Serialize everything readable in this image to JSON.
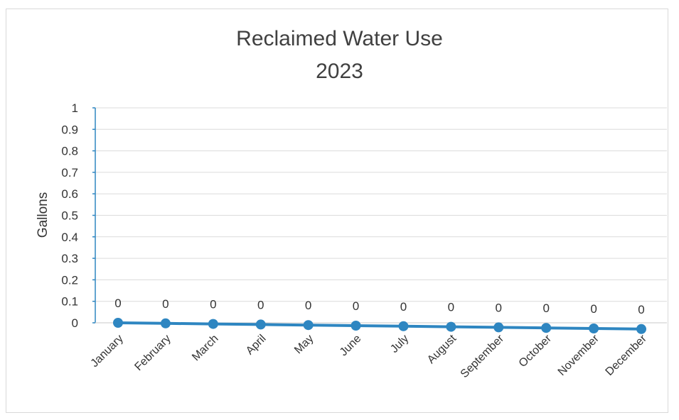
{
  "chart_data": {
    "type": "line",
    "title": "Reclaimed Water Use",
    "subtitle": "2023",
    "xlabel": "",
    "ylabel": "Gallons",
    "ylim": [
      0,
      1
    ],
    "yticks": [
      "0",
      "0.1",
      "0.2",
      "0.3",
      "0.4",
      "0.5",
      "0.6",
      "0.7",
      "0.8",
      "0.9",
      "1"
    ],
    "categories": [
      "January",
      "February",
      "March",
      "April",
      "May",
      "June",
      "July",
      "August",
      "September",
      "October",
      "November",
      "December"
    ],
    "series": [
      {
        "values": [
          0,
          0,
          0,
          0,
          0,
          0,
          0,
          0,
          0,
          0,
          0,
          0
        ],
        "data_labels": [
          "0",
          "0",
          "0",
          "0",
          "0",
          "0",
          "0",
          "0",
          "0",
          "0",
          "0",
          "0"
        ]
      }
    ],
    "grid": true,
    "legend": "none",
    "colors": {
      "series": "#2e86c1",
      "grid": "#dcdcdc",
      "axis": "#2e86c1",
      "text": "#333333"
    }
  }
}
